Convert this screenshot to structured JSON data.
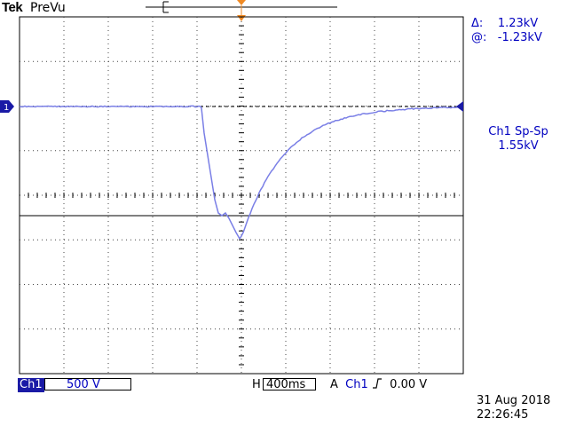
{
  "header": {
    "brand": "Tek",
    "mode": "PreVu"
  },
  "measurements": {
    "delta_label": "Δ:",
    "delta_value": "1.23kV",
    "at_label": "@:",
    "at_value": "-1.23kV",
    "meas_name": "Ch1 Sp-Sp",
    "meas_value": "1.55kV"
  },
  "markers": {
    "channel_ground": "1"
  },
  "status_bar": {
    "channel_badge": "Ch1",
    "channel_scale": "500 V",
    "horizontal_label": "H",
    "timebase": "400ms",
    "trigger_mode": "A",
    "trigger_source": "Ch1",
    "trigger_slope_icon": "rising-edge-icon",
    "trigger_level": "0.00 V",
    "date": "31 Aug 2018",
    "time": "22:26:45"
  },
  "colors": {
    "trace": "#7a7fe6",
    "channel": "#1a1aa6",
    "trigger_marker": "#f08a24",
    "grid": "#000000"
  }
}
